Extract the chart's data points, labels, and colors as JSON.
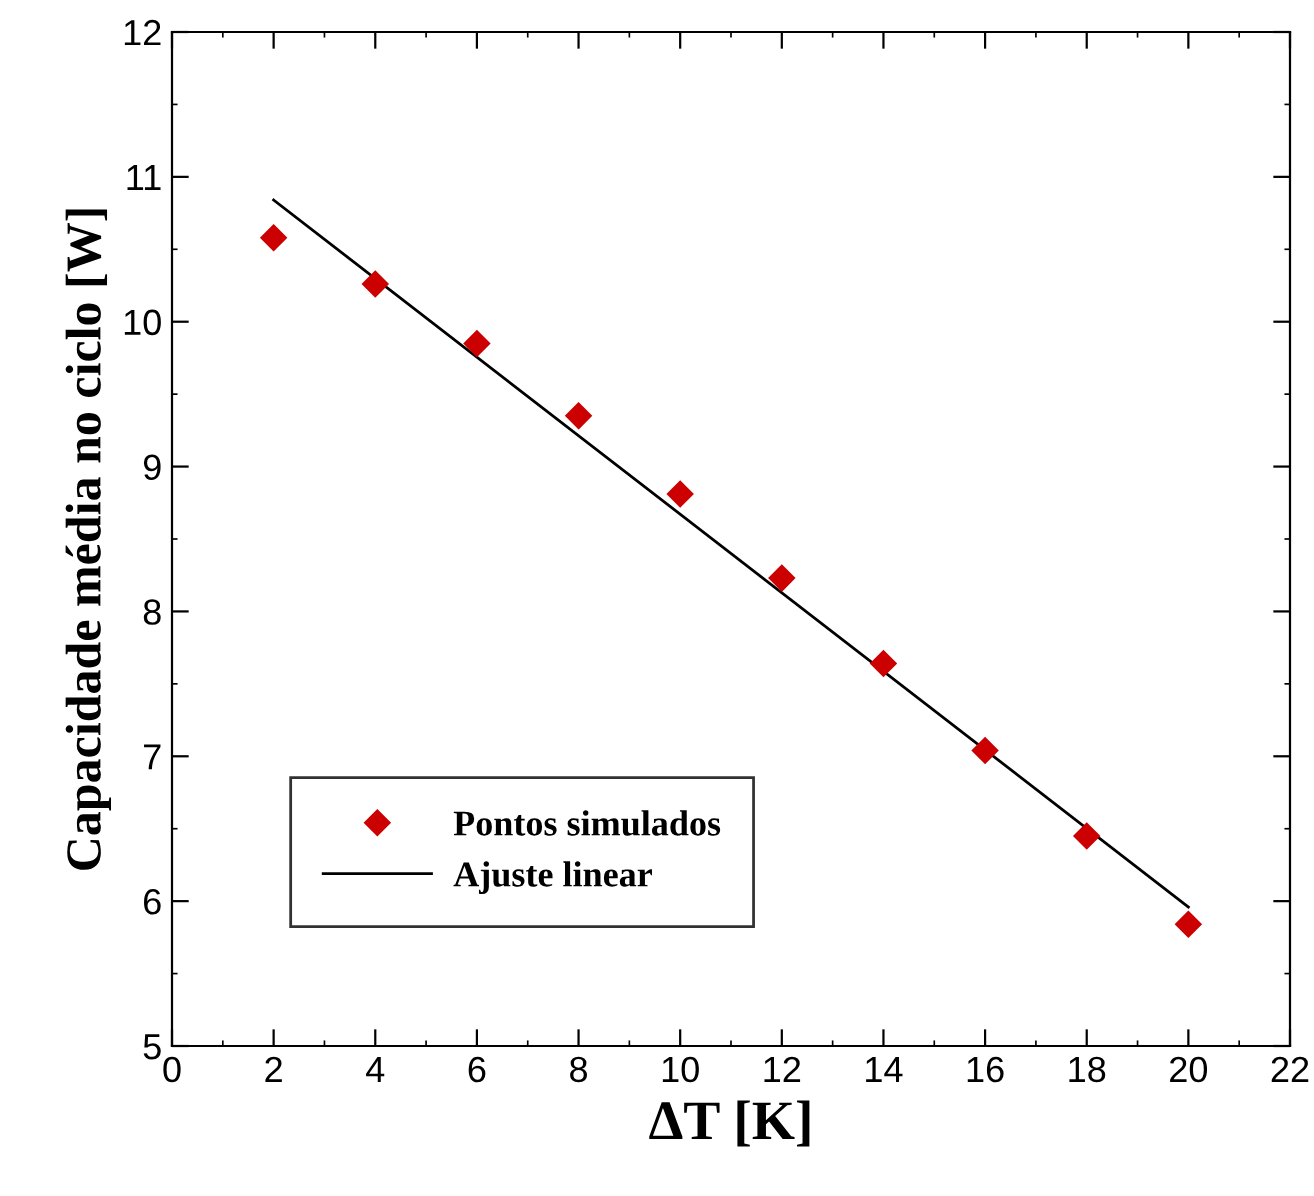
{
  "chart_data": {
    "type": "scatter",
    "xlabel": "ΔT [K]",
    "ylabel": "Capacidade média no ciclo [W]",
    "series": [
      {
        "name": "Pontos simulados",
        "color": "#cc0000",
        "marker": "diamond",
        "x": [
          2,
          4,
          6,
          8,
          10,
          12,
          14,
          16,
          18,
          20
        ],
        "values": [
          10.58,
          10.26,
          9.85,
          9.35,
          8.81,
          8.23,
          7.64,
          7.04,
          6.45,
          5.84
        ]
      },
      {
        "name": "Ajuste linear",
        "type": "line",
        "color": "#000000",
        "marker": "none",
        "x": [
          2,
          20
        ],
        "values": [
          10.84,
          5.96
        ]
      }
    ],
    "xlim": [
      0,
      22
    ],
    "xticks": [
      0,
      2,
      4,
      6,
      8,
      10,
      12,
      14,
      16,
      18,
      20,
      22
    ],
    "ylim": [
      5,
      12
    ],
    "yticks": [
      5,
      6,
      7,
      8,
      9,
      10,
      11,
      12
    ],
    "grid": false,
    "legend": "bottom left"
  }
}
